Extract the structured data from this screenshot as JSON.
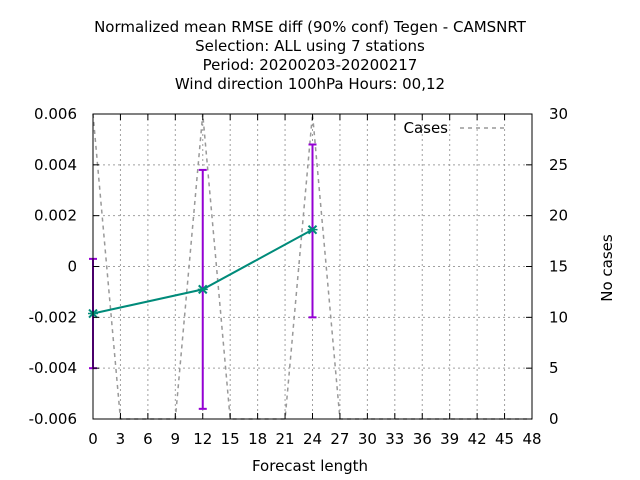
{
  "chart_data": {
    "type": "line",
    "title_lines": [
      "Normalized mean RMSE diff (90% conf) Tegen - CAMSNRT",
      "Selection: ALL using     7 stations",
      "Period: 20200203-20200217",
      "Wind direction 100hPa   Hours:  00,12"
    ],
    "xlabel": "Forecast length",
    "ylabel": "",
    "y2label": "No cases",
    "xlim": [
      0,
      48
    ],
    "ylim": [
      -0.006,
      0.006
    ],
    "y2lim": [
      0,
      30
    ],
    "x_ticks": [
      "0",
      "3",
      "6",
      "9",
      "12",
      "15",
      "18",
      "21",
      "24",
      "27",
      "30",
      "33",
      "36",
      "39",
      "42",
      "45",
      "48"
    ],
    "y_ticks": [
      "0.006",
      "0.004",
      "0.002",
      "0",
      "-0.002",
      "-0.004",
      "-0.006"
    ],
    "y2_ticks": [
      "30",
      "25",
      "20",
      "15",
      "10",
      "5",
      "0"
    ],
    "grid": true,
    "legend": {
      "position": "top-right",
      "entries": [
        "Cases"
      ]
    },
    "series": [
      {
        "axis": "y",
        "style": "line-with-errorbars",
        "color": "#008b7a",
        "errorbar_color": "#9400d3",
        "x": [
          0,
          12,
          24
        ],
        "y": [
          -0.00185,
          -0.0009,
          0.00145
        ],
        "y_low": [
          -0.004,
          -0.0056,
          -0.002
        ],
        "y_high": [
          0.0003,
          0.0038,
          0.0048
        ]
      },
      {
        "name": "Cases",
        "axis": "y2",
        "style": "dashed",
        "color": "#999999",
        "x": [
          0,
          3,
          9,
          12,
          15,
          21,
          24,
          27,
          48
        ],
        "y": [
          30,
          0,
          0,
          30,
          0,
          0,
          30,
          0,
          0
        ]
      }
    ]
  }
}
